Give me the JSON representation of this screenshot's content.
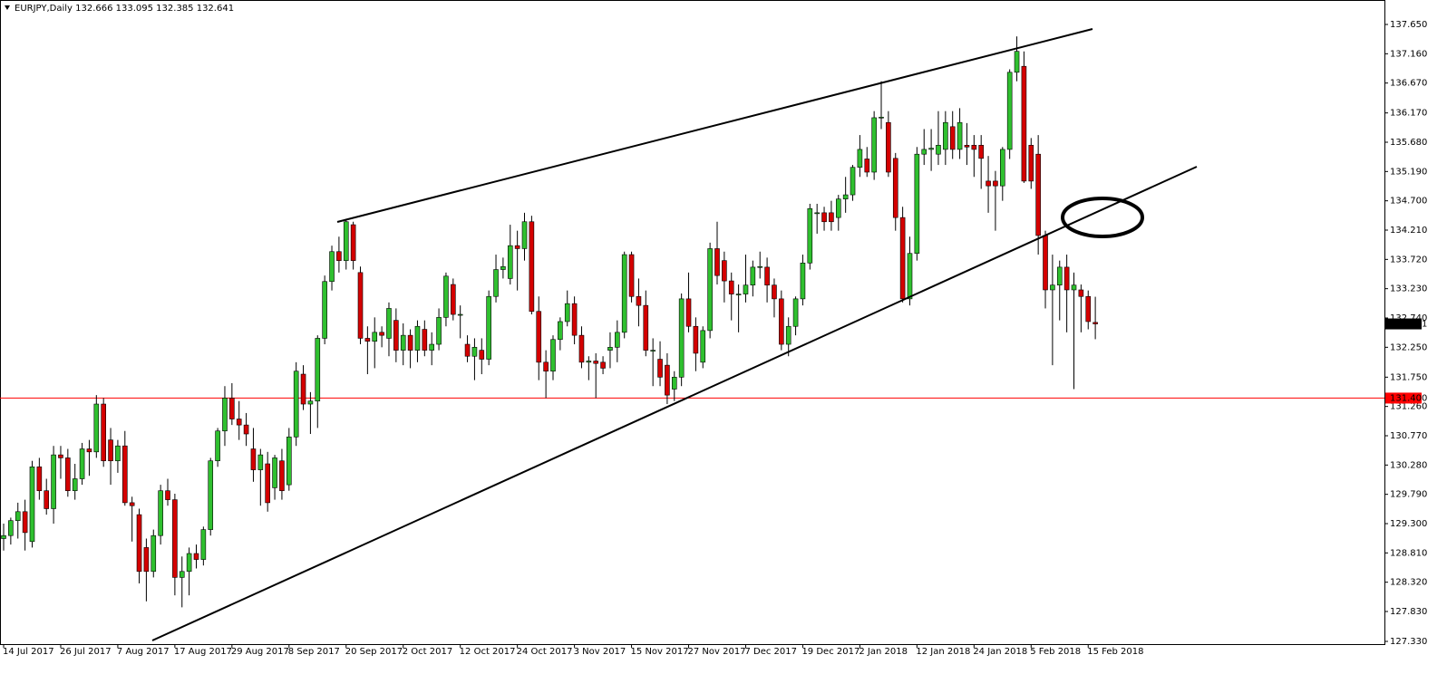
{
  "chart_data": {
    "type": "candlestick",
    "title": "EURJPY,Daily  132.666 133.095 132.385 132.641",
    "up_color": "#2fc02f",
    "down_color": "#d40000",
    "wick_color": "#000000",
    "categories": [
      "14 Jul 2017",
      null,
      null,
      null,
      null,
      null,
      null,
      null,
      "26 Jul 2017",
      null,
      null,
      null,
      null,
      null,
      null,
      null,
      "7 Aug 2017",
      null,
      null,
      null,
      null,
      null,
      null,
      null,
      "17 Aug 2017",
      null,
      null,
      null,
      null,
      null,
      null,
      null,
      "29 Aug 2017",
      null,
      null,
      null,
      null,
      null,
      null,
      null,
      "8 Sep 2017",
      null,
      null,
      null,
      null,
      null,
      null,
      null,
      "20 Sep 2017",
      null,
      null,
      null,
      null,
      null,
      null,
      null,
      "2 Oct 2017",
      null,
      null,
      null,
      null,
      null,
      null,
      null,
      "12 Oct 2017",
      null,
      null,
      null,
      null,
      null,
      null,
      null,
      "24 Oct 2017",
      null,
      null,
      null,
      null,
      null,
      null,
      null,
      "3 Nov 2017",
      null,
      null,
      null,
      null,
      null,
      null,
      null,
      "15 Nov 2017",
      null,
      null,
      null,
      null,
      null,
      null,
      null,
      "27 Nov 2017",
      null,
      null,
      null,
      null,
      null,
      null,
      null,
      "7 Dec 2017",
      null,
      null,
      null,
      null,
      null,
      null,
      null,
      "19 Dec 2017",
      null,
      null,
      null,
      null,
      null,
      null,
      null,
      "2 Jan 2018",
      null,
      null,
      null,
      null,
      null,
      null,
      null,
      "12 Jan 2018",
      null,
      null,
      null,
      null,
      null,
      null,
      null,
      "24 Jan 2018",
      null,
      null,
      null,
      null,
      null,
      null,
      null,
      "5 Feb 2018",
      null,
      null,
      null,
      null,
      null,
      null,
      null,
      "15 Feb 2018",
      null
    ],
    "open": [
      129.05,
      129.1,
      129.35,
      129.5,
      129.0,
      130.25,
      129.85,
      129.55,
      130.45,
      130.4,
      129.85,
      130.05,
      130.55,
      130.5,
      131.3,
      130.7,
      130.35,
      130.6,
      129.65,
      129.45,
      128.9,
      128.5,
      129.1,
      129.85,
      129.7,
      128.4,
      128.5,
      128.8,
      128.7,
      129.2,
      130.35,
      130.85,
      131.4,
      131.05,
      130.95,
      130.55,
      130.2,
      130.3,
      129.9,
      130.35,
      129.95,
      130.75,
      131.8,
      131.3,
      131.35,
      132.4,
      133.35,
      133.85,
      133.7,
      134.3,
      133.5,
      132.4,
      132.35,
      132.5,
      132.4,
      132.7,
      132.2,
      132.45,
      132.2,
      132.55,
      132.2,
      132.3,
      132.75,
      133.3,
      132.8,
      132.3,
      132.1,
      132.2,
      132.05,
      133.1,
      133.55,
      133.4,
      133.95,
      133.9,
      134.35,
      132.85,
      132.0,
      131.85,
      132.38,
      132.68,
      132.98,
      132.45,
      132.0,
      132.02,
      132.0,
      132.2,
      132.25,
      132.5,
      133.8,
      133.1,
      132.95,
      132.2,
      132.05,
      131.95,
      131.55,
      131.75,
      133.06,
      132.6,
      132.0,
      132.53,
      133.9,
      133.7,
      133.36,
      133.14,
      133.14,
      133.29,
      133.59,
      133.59,
      133.29,
      133.06,
      132.3,
      132.6,
      133.06,
      133.66,
      134.5,
      134.5,
      134.5,
      134.42,
      134.73,
      134.8,
      135.26,
      135.4,
      135.18,
      136.09,
      136.01,
      135.41,
      134.42,
      133.06,
      133.82,
      135.48,
      135.56,
      135.48,
      135.56,
      135.94,
      135.56,
      135.63,
      135.63,
      135.63,
      135.03,
      135.03,
      134.95,
      135.56,
      136.85,
      136.95,
      135.63,
      135.48,
      134.12,
      133.21,
      133.29,
      133.59,
      133.21,
      133.21,
      133.1,
      132.666
    ],
    "high": [
      129.3,
      129.4,
      129.65,
      129.7,
      130.35,
      130.4,
      130.05,
      130.6,
      130.6,
      130.55,
      130.3,
      130.65,
      130.7,
      131.45,
      131.4,
      130.9,
      130.7,
      130.85,
      129.75,
      129.55,
      129.05,
      129.2,
      129.95,
      130.05,
      129.8,
      128.75,
      128.9,
      128.95,
      129.25,
      130.4,
      130.9,
      131.6,
      131.65,
      131.35,
      131.15,
      130.9,
      130.55,
      130.5,
      130.45,
      130.55,
      130.9,
      132.0,
      131.95,
      131.5,
      132.45,
      133.45,
      133.95,
      134.1,
      134.4,
      134.35,
      133.6,
      132.6,
      132.75,
      132.6,
      133.0,
      132.9,
      132.65,
      132.55,
      132.7,
      132.7,
      132.5,
      132.9,
      133.5,
      133.4,
      132.95,
      132.45,
      132.4,
      132.4,
      133.2,
      133.8,
      133.75,
      134.3,
      134.2,
      134.5,
      134.45,
      133.1,
      132.2,
      132.45,
      132.75,
      133.2,
      133.1,
      132.6,
      132.1,
      132.15,
      132.1,
      132.5,
      132.7,
      133.85,
      133.85,
      133.4,
      133.2,
      132.4,
      132.35,
      132.15,
      131.85,
      133.15,
      133.5,
      132.75,
      132.6,
      134.0,
      134.35,
      133.85,
      133.5,
      133.3,
      133.8,
      133.7,
      133.85,
      133.75,
      133.4,
      133.2,
      132.75,
      133.1,
      133.8,
      134.65,
      134.65,
      134.6,
      134.7,
      134.8,
      135.1,
      135.3,
      135.8,
      135.6,
      136.2,
      136.7,
      136.2,
      135.5,
      134.6,
      134.1,
      135.6,
      135.9,
      135.9,
      136.2,
      136.2,
      136.2,
      136.25,
      136.0,
      135.8,
      135.8,
      135.45,
      135.2,
      135.6,
      136.9,
      137.45,
      137.2,
      135.75,
      135.8,
      134.2,
      133.8,
      133.7,
      133.8,
      133.5,
      133.3,
      133.2,
      133.095
    ],
    "low": [
      128.85,
      128.95,
      129.05,
      128.85,
      128.9,
      129.7,
      129.45,
      129.3,
      130.05,
      129.75,
      129.7,
      129.95,
      130.1,
      130.4,
      130.25,
      129.95,
      130.15,
      129.6,
      129.0,
      128.3,
      128.0,
      128.4,
      128.95,
      129.6,
      128.1,
      127.9,
      128.1,
      128.55,
      128.6,
      129.1,
      130.25,
      130.6,
      130.95,
      130.7,
      130.6,
      130.0,
      129.6,
      129.5,
      129.7,
      129.7,
      129.85,
      130.6,
      131.2,
      130.8,
      130.9,
      132.3,
      133.2,
      133.5,
      133.55,
      133.55,
      132.3,
      131.8,
      131.9,
      132.25,
      132.1,
      132.0,
      131.95,
      131.9,
      132.0,
      132.1,
      131.95,
      132.2,
      132.6,
      132.7,
      132.4,
      132.0,
      131.7,
      131.8,
      131.95,
      133.0,
      133.4,
      133.3,
      133.2,
      133.7,
      132.8,
      131.7,
      131.4,
      131.7,
      132.2,
      132.6,
      132.3,
      131.9,
      131.7,
      131.4,
      131.8,
      131.9,
      132.0,
      132.4,
      133.0,
      132.6,
      132.1,
      131.6,
      131.6,
      131.3,
      131.35,
      131.6,
      132.5,
      131.85,
      131.9,
      132.4,
      133.3,
      133.0,
      132.7,
      132.5,
      133.0,
      133.1,
      133.4,
      133.0,
      132.75,
      132.2,
      132.1,
      132.45,
      132.95,
      133.55,
      134.15,
      134.2,
      134.2,
      134.2,
      134.5,
      134.7,
      135.1,
      135.1,
      135.05,
      135.9,
      135.1,
      134.2,
      133.0,
      132.95,
      133.7,
      135.3,
      135.2,
      135.3,
      135.3,
      135.4,
      135.4,
      135.3,
      135.1,
      134.9,
      134.5,
      134.2,
      134.7,
      135.4,
      136.7,
      135.0,
      134.9,
      133.8,
      132.9,
      131.95,
      132.7,
      132.5,
      131.55,
      132.5,
      132.55,
      132.385
    ],
    "close": [
      129.1,
      129.35,
      129.5,
      129.15,
      130.25,
      129.85,
      129.55,
      130.45,
      130.4,
      129.85,
      130.05,
      130.55,
      130.5,
      131.3,
      130.35,
      130.35,
      130.6,
      129.65,
      129.6,
      128.5,
      128.5,
      129.1,
      129.85,
      129.7,
      128.4,
      128.5,
      128.8,
      128.7,
      129.2,
      130.35,
      130.85,
      131.4,
      131.05,
      130.95,
      130.8,
      130.2,
      130.45,
      129.65,
      130.4,
      129.85,
      130.75,
      131.85,
      131.3,
      131.35,
      132.4,
      133.35,
      133.85,
      133.7,
      134.35,
      133.7,
      132.4,
      132.35,
      132.5,
      132.45,
      132.9,
      132.2,
      132.45,
      132.2,
      132.6,
      132.2,
      132.3,
      132.75,
      133.44,
      132.8,
      132.8,
      132.1,
      132.25,
      132.05,
      133.1,
      133.55,
      133.6,
      133.95,
      133.9,
      134.35,
      132.85,
      132.0,
      131.85,
      132.38,
      132.68,
      132.98,
      132.45,
      132.0,
      132.02,
      131.98,
      131.9,
      132.25,
      132.5,
      133.8,
      133.1,
      132.95,
      132.2,
      132.2,
      131.75,
      131.45,
      131.75,
      133.06,
      132.6,
      132.15,
      132.53,
      133.9,
      133.45,
      133.36,
      133.14,
      133.14,
      133.29,
      133.59,
      133.6,
      133.29,
      133.06,
      132.3,
      132.6,
      133.06,
      133.66,
      134.57,
      134.5,
      134.35,
      134.35,
      134.73,
      134.8,
      135.26,
      135.56,
      135.18,
      136.09,
      136.1,
      135.18,
      134.42,
      133.06,
      133.82,
      135.48,
      135.56,
      135.58,
      135.63,
      136.01,
      135.56,
      136.01,
      135.6,
      135.56,
      135.41,
      134.95,
      134.95,
      135.56,
      136.85,
      137.2,
      135.03,
      135.03,
      134.12,
      133.21,
      133.29,
      133.59,
      133.21,
      133.29,
      133.1,
      132.68,
      132.641
    ],
    "ylim": [
      127.33,
      137.65
    ],
    "yticks": [
      {
        "value": 137.65,
        "label": "137.650"
      },
      {
        "value": 137.16,
        "label": "137.160"
      },
      {
        "value": 136.67,
        "label": "136.670"
      },
      {
        "value": 136.17,
        "label": "136.170"
      },
      {
        "value": 135.68,
        "label": "135.680"
      },
      {
        "value": 135.19,
        "label": "135.190"
      },
      {
        "value": 134.7,
        "label": "134.700"
      },
      {
        "value": 134.21,
        "label": "134.210"
      },
      {
        "value": 133.72,
        "label": "133.720"
      },
      {
        "value": 133.23,
        "label": "133.230"
      },
      {
        "value": 132.74,
        "label": "132.740"
      },
      {
        "value": 132.25,
        "label": "132.250"
      },
      {
        "value": 131.75,
        "label": "131.750"
      },
      {
        "value": 131.26,
        "label": "131.260"
      },
      {
        "value": 130.77,
        "label": "130.770"
      },
      {
        "value": 130.28,
        "label": "130.280"
      },
      {
        "value": 129.79,
        "label": "129.790"
      },
      {
        "value": 129.3,
        "label": "129.300"
      },
      {
        "value": 128.81,
        "label": "128.810"
      },
      {
        "value": 128.32,
        "label": "128.320"
      },
      {
        "value": 127.83,
        "label": "127.830"
      },
      {
        "value": 127.33,
        "label": "127.330"
      }
    ],
    "hline": {
      "value": 131.4,
      "label": "131.400",
      "color": "#ff0000"
    },
    "last_price": {
      "value": 132.641,
      "label": "132.641"
    }
  }
}
